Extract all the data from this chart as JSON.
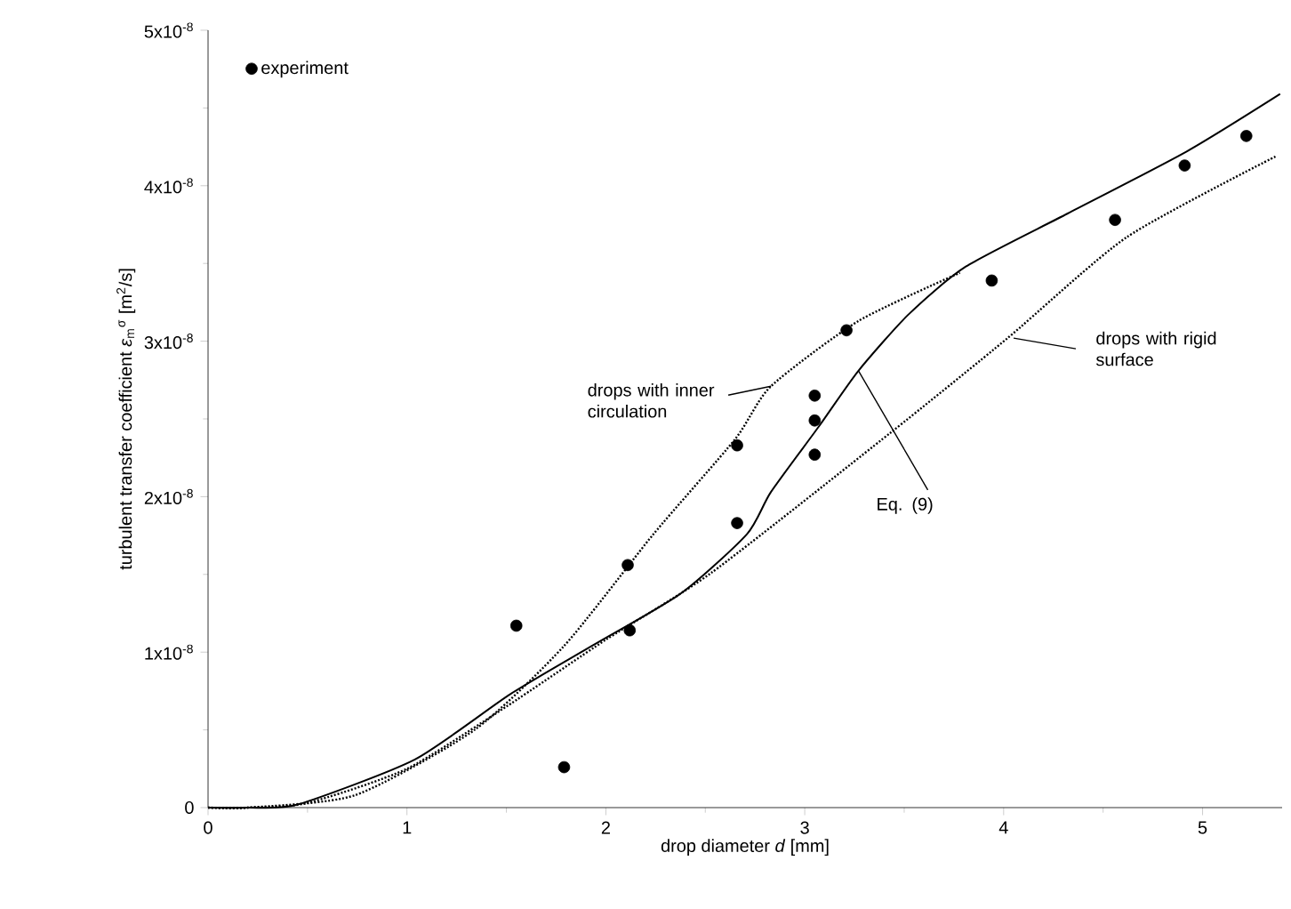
{
  "chart_data": {
    "type": "scatter",
    "xlabel": "drop diameter *d* [mm]",
    "ylabel": "turbulent transfer coefficient *ε*$_{m}$$^{σ}$ [m$^{2}$/s]",
    "xlim": [
      0,
      5.4
    ],
    "ylim": [
      0,
      5e-08
    ],
    "xticks": [
      0,
      1,
      2,
      3,
      4,
      5
    ],
    "yticks": [
      0,
      {
        "value": 1e-08,
        "label": "1x10$^{-8}$"
      },
      {
        "value": 2e-08,
        "label": "2x10$^{-8}$"
      },
      {
        "value": 3e-08,
        "label": "3x10$^{-8}$"
      },
      {
        "value": 4e-08,
        "label": "4x10$^{-8}$"
      },
      {
        "value": 5e-08,
        "label": "5x10$^{-8}$"
      }
    ],
    "legend": "top left",
    "grid": false,
    "series": [
      {
        "name": "experiment",
        "marker": "circle",
        "color": "#000000",
        "x": [
          1.55,
          1.79,
          2.11,
          2.12,
          2.66,
          2.66,
          3.05,
          3.05,
          3.05,
          3.21,
          3.94,
          4.56,
          4.91,
          5.22
        ],
        "values": [
          1.17e-08,
          2.6e-09,
          1.56e-08,
          1.14e-08,
          2.33e-08,
          1.83e-08,
          2.65e-08,
          2.49e-08,
          2.27e-08,
          3.07e-08,
          3.39e-08,
          3.78e-08,
          4.13e-08,
          4.32e-08
        ]
      },
      {
        "type": "line",
        "line_style": "solid",
        "color": "#000000",
        "x": [
          0,
          0.2,
          0.45,
          1.04,
          1.52,
          1.93,
          2.38,
          2.71,
          2.83,
          3.07,
          3.27,
          3.52,
          3.81,
          4.32,
          4.92,
          5.39
        ],
        "values": [
          0,
          0,
          2e-10,
          3.1e-09,
          7.3e-09,
          1.04e-08,
          1.38e-08,
          1.76e-08,
          2.03e-08,
          2.45e-08,
          2.81e-08,
          3.17e-08,
          3.48e-08,
          3.82e-08,
          4.22e-08,
          4.59e-08
        ]
      },
      {
        "type": "line",
        "line_style": "dotted",
        "color": "#000000",
        "x": [
          0,
          0.2,
          0.74,
          1.34,
          1.79,
          2.24,
          2.65,
          2.83,
          3.27,
          3.78
        ],
        "values": [
          0,
          0,
          8e-10,
          5e-09,
          1.04e-08,
          1.76e-08,
          2.37e-08,
          2.71e-08,
          3.13e-08,
          3.44e-08
        ]
      },
      {
        "type": "line",
        "line_style": "dotted",
        "color": "#000000",
        "x": [
          0,
          0.2,
          0.5,
          1.0,
          1.5,
          2.0,
          2.53,
          3.43,
          4.02,
          4.62,
          5.37
        ],
        "values": [
          0,
          0,
          3e-10,
          2.5e-09,
          6.5e-09,
          1.08e-08,
          1.51e-08,
          2.41e-08,
          3.02e-08,
          3.67e-08,
          4.19e-08
        ]
      }
    ],
    "annotations": [
      {
        "text": "drops with inner circulation",
        "x": 2.83,
        "y": 2.71e-08
      },
      {
        "text": "drops with rigid surface",
        "x": 4.05,
        "y": 3.02e-08
      },
      {
        "text": "Eq. (9)",
        "x": 3.27,
        "y": 2.81e-08
      }
    ]
  }
}
